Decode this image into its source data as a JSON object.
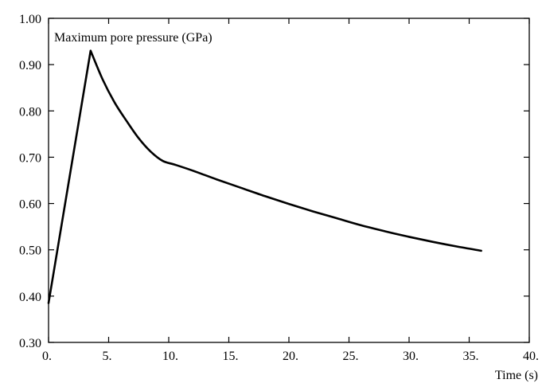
{
  "chart_data": {
    "type": "line",
    "title": "",
    "ylabel": "Maximum pore pressure (GPa)",
    "xlabel": "Time (s)",
    "xlim": [
      0,
      40
    ],
    "ylim": [
      0.3,
      1.0
    ],
    "x_ticks": [
      0,
      5,
      10,
      15,
      20,
      25,
      30,
      35,
      40
    ],
    "x_tick_labels": [
      "0.",
      "5.",
      "10.",
      "15.",
      "20.",
      "25.",
      "30.",
      "35.",
      "40."
    ],
    "y_ticks": [
      0.3,
      0.4,
      0.5,
      0.6,
      0.7,
      0.8,
      0.9,
      1.0
    ],
    "y_tick_labels": [
      "0.30",
      "0.40",
      "0.50",
      "0.60",
      "0.70",
      "0.80",
      "0.90",
      "1.00"
    ],
    "grid": false,
    "series": [
      {
        "x": [
          0.0,
          3.5,
          4.5,
          5.5,
          6.5,
          7.5,
          8.5,
          9.5,
          10.5,
          12.0,
          14.0,
          16.0,
          18.0,
          20.0,
          22.0,
          24.0,
          26.0,
          28.0,
          30.0,
          32.0,
          34.0,
          36.0
        ],
        "y": [
          0.385,
          0.93,
          0.868,
          0.818,
          0.778,
          0.741,
          0.712,
          0.692,
          0.684,
          0.671,
          0.652,
          0.634,
          0.616,
          0.599,
          0.583,
          0.568,
          0.553,
          0.54,
          0.528,
          0.517,
          0.507,
          0.498
        ]
      }
    ]
  }
}
